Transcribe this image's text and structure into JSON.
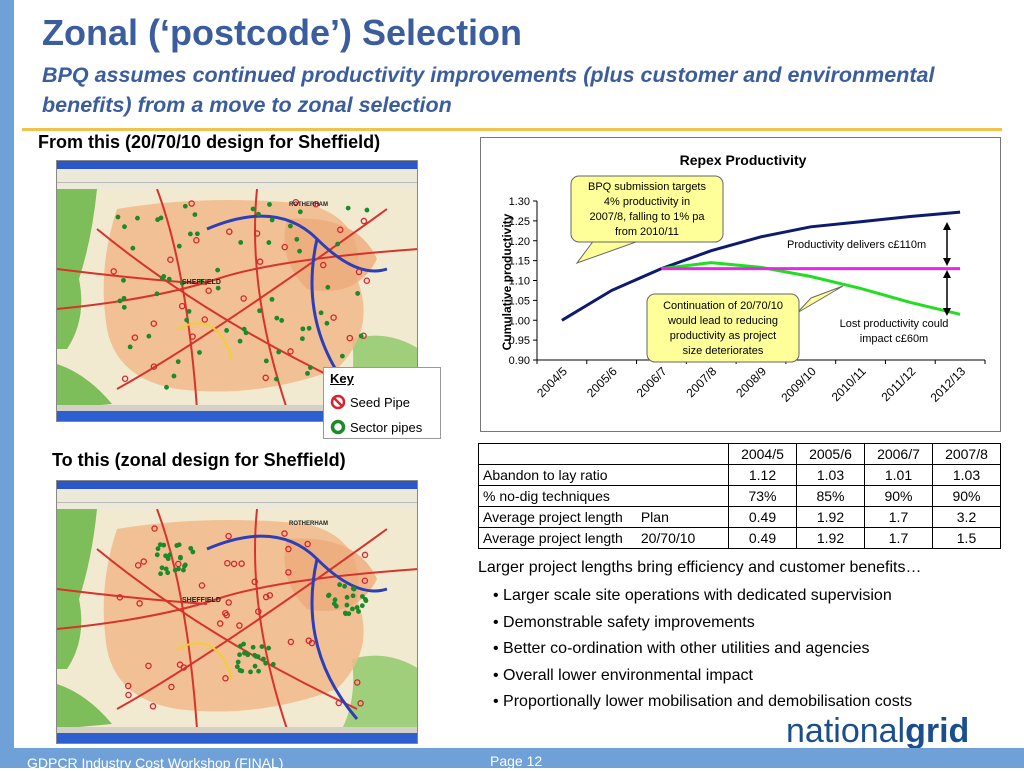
{
  "slide": {
    "title": "Zonal (‘postcode’) Selection",
    "subtitle": "BPQ assumes continued productivity improvements (plus customer and environmental benefits) from a move to zonal selection",
    "from_label": "From this (20/70/10 design for Sheffield)",
    "to_label": "To this (zonal design for Sheffield)"
  },
  "map": {
    "city_label": "SHEFFIELD",
    "town_label": "ROTHERHAM"
  },
  "key": {
    "title": "Key",
    "items": [
      {
        "label": "Seed Pipe",
        "icon": "no-entry-icon",
        "color": "#d9232d"
      },
      {
        "label": "Sector pipes",
        "icon": "ring-icon",
        "color": "#1a8a2a"
      }
    ]
  },
  "chart_data": {
    "type": "line",
    "title": "Repex Productivity",
    "ylabel": "Cumulative productivity",
    "xlabel": "",
    "categories": [
      "2004/5",
      "2005/6",
      "2006/7",
      "2007/8",
      "2008/9",
      "2009/10",
      "2010/11",
      "2011/12",
      "2012/13"
    ],
    "ylim": [
      0.9,
      1.3
    ],
    "yticks": [
      "0.90",
      "0.95",
      "1.00",
      "1.05",
      "1.10",
      "1.15",
      "1.20",
      "1.25",
      "1.30"
    ],
    "grid": false,
    "series": [
      {
        "color": "#0d1a6e",
        "values": [
          1.0,
          1.075,
          1.13,
          1.175,
          1.21,
          1.235,
          1.248,
          1.261,
          1.272
        ]
      },
      {
        "color": "#22dd22",
        "values": [
          null,
          null,
          1.13,
          1.145,
          1.133,
          1.11,
          1.08,
          1.045,
          1.015
        ]
      },
      {
        "color": "#ee22ee",
        "values": [
          null,
          null,
          1.13,
          1.13,
          1.13,
          1.13,
          1.13,
          1.13,
          1.13
        ]
      }
    ],
    "annotations": [
      "BPQ submission targets 4% productivity in 2007/8, falling to 1% pa from 2010/11",
      "Productivity delivers c£110m",
      "Continuation of 20/70/10 would lead to reducing productivity as project size deteriorates",
      "Lost productivity could impact c£60m"
    ]
  },
  "table": {
    "headers": [
      "",
      "2004/5",
      "2005/6",
      "2006/7",
      "2007/8"
    ],
    "rows": [
      {
        "label": "Abandon to lay ratio",
        "sub": "",
        "values": [
          "1.12",
          "1.03",
          "1.01",
          "1.03"
        ]
      },
      {
        "label": "% no-dig techniques",
        "sub": "",
        "values": [
          "73%",
          "85%",
          "90%",
          "90%"
        ]
      },
      {
        "label": "Average project length",
        "sub": "Plan",
        "values": [
          "0.49",
          "1.92",
          "1.7",
          "3.2"
        ]
      },
      {
        "label": "Average project length",
        "sub": "20/70/10",
        "values": [
          "0.49",
          "1.92",
          "1.7",
          "1.5"
        ]
      }
    ]
  },
  "benefits": {
    "heading": "Larger project lengths bring efficiency and customer benefits…",
    "items": [
      "• Larger scale site operations with dedicated supervision",
      "• Demonstrable safety improvements",
      "• Better co-ordination with other utilities and agencies",
      "• Overall lower environmental impact",
      "• Proportionally lower mobilisation and demobilisation costs"
    ]
  },
  "footer": {
    "left": "GDPCR Industry Cost Workshop (FINAL)",
    "page": "Page 12"
  },
  "logo": {
    "part1": "national",
    "part2": "grid"
  }
}
